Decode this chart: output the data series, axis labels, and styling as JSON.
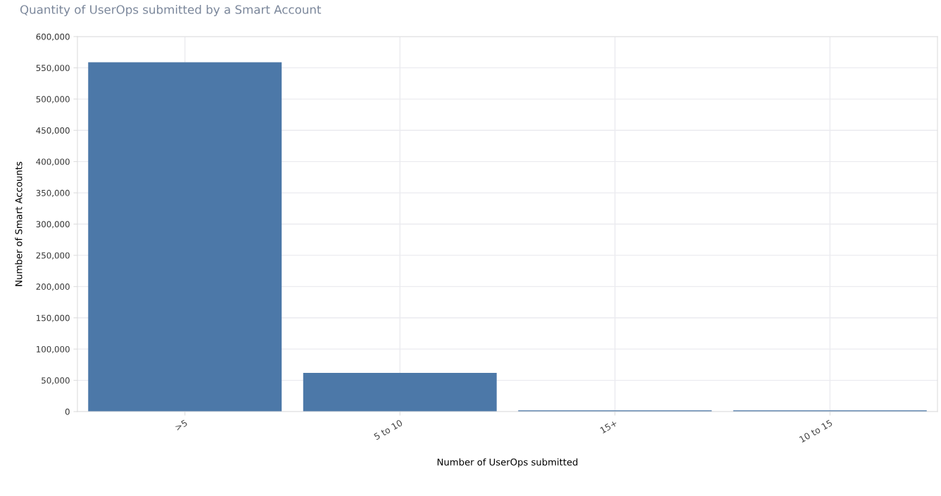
{
  "chart_data": {
    "type": "bar",
    "title": "Quantity of UserOps submitted by a Smart Account",
    "xlabel": "Number of UserOps submitted",
    "ylabel": "Number of Smart Accounts",
    "categories": [
      ">5",
      "5 to 10",
      "15+",
      "10 to 15"
    ],
    "values": [
      559000,
      62000,
      2000,
      2000
    ],
    "color": "#4c78a8",
    "ylim": [
      0,
      600000
    ],
    "yticks": [
      {
        "value": 0,
        "label": "0"
      },
      {
        "value": 50000,
        "label": "50,000"
      },
      {
        "value": 100000,
        "label": "100,000"
      },
      {
        "value": 150000,
        "label": "150,000"
      },
      {
        "value": 200000,
        "label": "200,000"
      },
      {
        "value": 250000,
        "label": "250,000"
      },
      {
        "value": 300000,
        "label": "300,000"
      },
      {
        "value": 350000,
        "label": "350,000"
      },
      {
        "value": 400000,
        "label": "400,000"
      },
      {
        "value": 450000,
        "label": "450,000"
      },
      {
        "value": 500000,
        "label": "500,000"
      },
      {
        "value": 550000,
        "label": "550,000"
      },
      {
        "value": 600000,
        "label": "600,000"
      }
    ],
    "grid": true
  }
}
